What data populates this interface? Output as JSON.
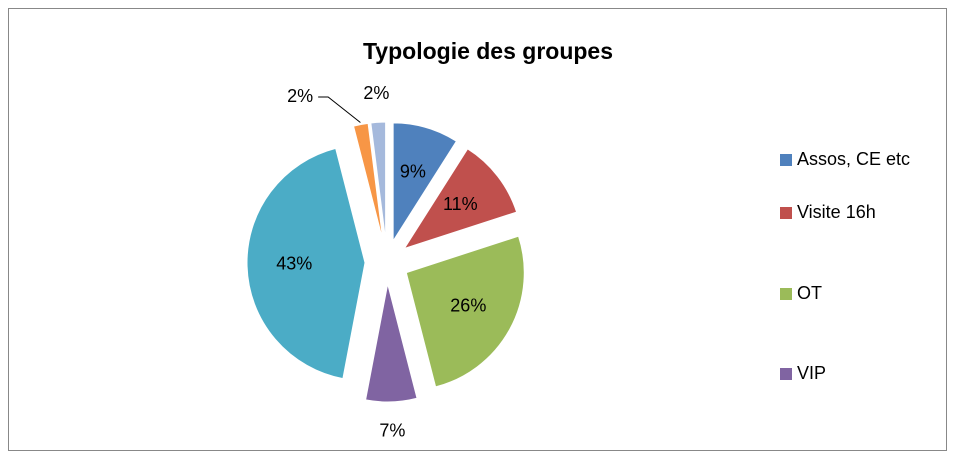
{
  "chart_data": {
    "type": "pie",
    "title": "Typologie des groupes",
    "categories": [
      "Assos, CE etc",
      "Visite 16h",
      "OT",
      "VIP",
      null,
      null,
      null
    ],
    "values": [
      9,
      11,
      26,
      7,
      43,
      2,
      2
    ],
    "value_labels": [
      "9%",
      "11%",
      "26%",
      "7%",
      "43%",
      "2%",
      "2%"
    ],
    "colors": [
      "#4f81bd",
      "#c0504d",
      "#9bbb59",
      "#8064a2",
      "#4bacc6",
      "#f79646",
      "#a5b9dc"
    ],
    "legend": "right"
  }
}
